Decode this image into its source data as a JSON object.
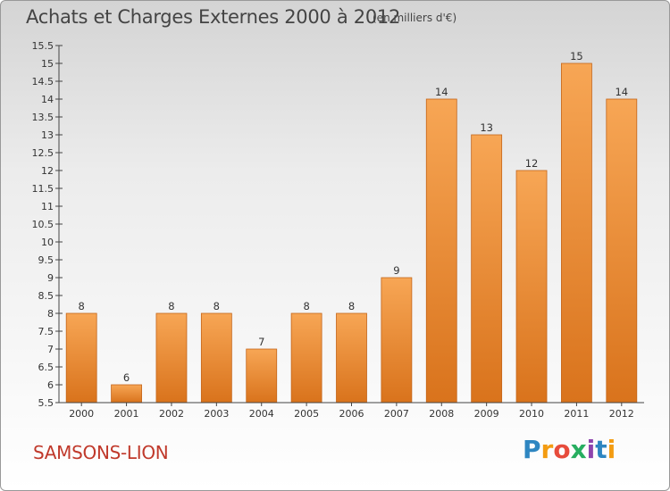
{
  "title": "Achats et Charges Externes 2000 à 2012",
  "subtitle": "(en milliers d'€)",
  "footer_name": "SAMSONS-LION",
  "logo": [
    "P",
    "r",
    "o",
    "x",
    "i",
    "t",
    "i"
  ],
  "logo_colors": [
    "#2e86c1",
    "#f39c12",
    "#e74c3c",
    "#27ae60",
    "#8e44ad",
    "#2e86c1",
    "#f39c12"
  ],
  "bar_colors": {
    "top": "#f7a655",
    "bottom": "#d9731c",
    "edge": "#c4651a"
  },
  "chart_data": {
    "type": "bar",
    "title": "Achats et Charges Externes 2000 à 2012",
    "subtitle": "(en milliers d'€)",
    "categories": [
      "2000",
      "2001",
      "2002",
      "2003",
      "2004",
      "2005",
      "2006",
      "2007",
      "2008",
      "2009",
      "2010",
      "2011",
      "2012"
    ],
    "values": [
      8,
      6,
      8,
      8,
      7,
      8,
      8,
      9,
      14,
      13,
      12,
      15,
      14
    ],
    "ylim": [
      5.5,
      15.5
    ],
    "yticks": [
      "5.5",
      "6",
      "6.5",
      "7",
      "7.5",
      "8",
      "8.5",
      "9",
      "9.5",
      "10",
      "10.5",
      "11",
      "11.5",
      "12",
      "12.5",
      "13",
      "13.5",
      "14",
      "14.5",
      "15",
      "15.5"
    ],
    "grid": false,
    "legend": false
  }
}
